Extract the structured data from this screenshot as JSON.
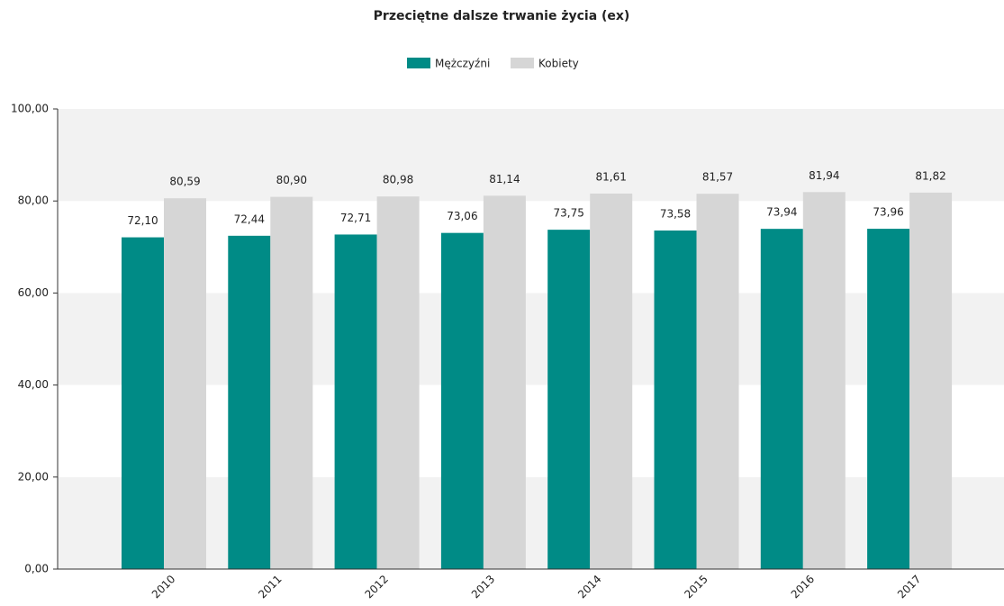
{
  "chart_data": {
    "type": "bar",
    "title": "Przeciętne dalsze trwanie życia (ex)",
    "categories": [
      "2010",
      "2011",
      "2012",
      "2013",
      "2014",
      "2015",
      "2016",
      "2017"
    ],
    "series": [
      {
        "name": "Mężczyźni",
        "color": "#008b86",
        "values": [
          72.1,
          72.44,
          72.71,
          73.06,
          73.75,
          73.58,
          73.94,
          73.96
        ],
        "value_labels": [
          "72,10",
          "72,44",
          "72,71",
          "73,06",
          "73,75",
          "73,58",
          "73,94",
          "73,96"
        ]
      },
      {
        "name": "Kobiety",
        "color": "#d6d6d6",
        "values": [
          80.59,
          80.9,
          80.98,
          81.14,
          81.61,
          81.57,
          81.94,
          81.82
        ],
        "value_labels": [
          "80,59",
          "80,90",
          "80,98",
          "81,14",
          "81,61",
          "81,57",
          "81,94",
          "81,82"
        ]
      }
    ],
    "ylim": [
      0,
      100
    ],
    "yticks": [
      {
        "value": 0,
        "label": "0,00"
      },
      {
        "value": 20,
        "label": "20,00"
      },
      {
        "value": 40,
        "label": "40,00"
      },
      {
        "value": 60,
        "label": "60,00"
      },
      {
        "value": 80,
        "label": "80,00"
      },
      {
        "value": 100,
        "label": "100,00"
      }
    ],
    "grid": true,
    "legend": "top"
  }
}
